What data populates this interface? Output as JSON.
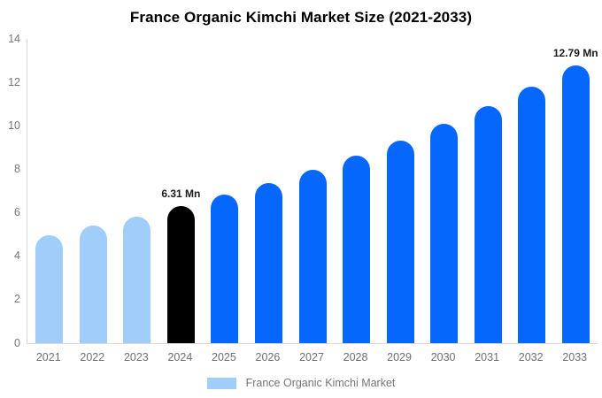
{
  "chart_data": {
    "type": "bar",
    "title": "France Organic Kimchi Market Size (2021-2033)",
    "categories": [
      "2021",
      "2022",
      "2023",
      "2024",
      "2025",
      "2026",
      "2027",
      "2028",
      "2029",
      "2030",
      "2031",
      "2032",
      "2033"
    ],
    "series": [
      {
        "name": "France Organic Kimchi Market",
        "values": [
          4.97,
          5.4,
          5.82,
          6.31,
          6.82,
          7.38,
          7.97,
          8.62,
          9.32,
          10.08,
          10.9,
          11.79,
          12.79
        ]
      }
    ],
    "bar_colors": [
      "#a1cdfa",
      "#a1cdfa",
      "#a1cdfa",
      "#000000",
      "#0667fc",
      "#0667fc",
      "#0667fc",
      "#0667fc",
      "#0667fc",
      "#0667fc",
      "#0667fc",
      "#0667fc",
      "#0667fc"
    ],
    "annotations": [
      {
        "index": 3,
        "text": "6.31 Mn"
      },
      {
        "index": 12,
        "text": "12.79 Mn"
      }
    ],
    "xlabel": "",
    "ylabel": "",
    "ylim": [
      0,
      14
    ],
    "yticks": [
      0,
      2,
      4,
      6,
      8,
      10,
      12,
      14
    ],
    "grid": false,
    "legend": {
      "position": "bottom-center",
      "label": "France Organic Kimchi Market",
      "swatch_color": "#a1cdfa"
    },
    "colors": {
      "background": "#ffffff",
      "axis_line": "#d9d9d9",
      "tick_text": "#6e6e6e",
      "title_text": "#000000",
      "annotation_text": "#1a1a1a",
      "legend_text": "#757575"
    }
  }
}
